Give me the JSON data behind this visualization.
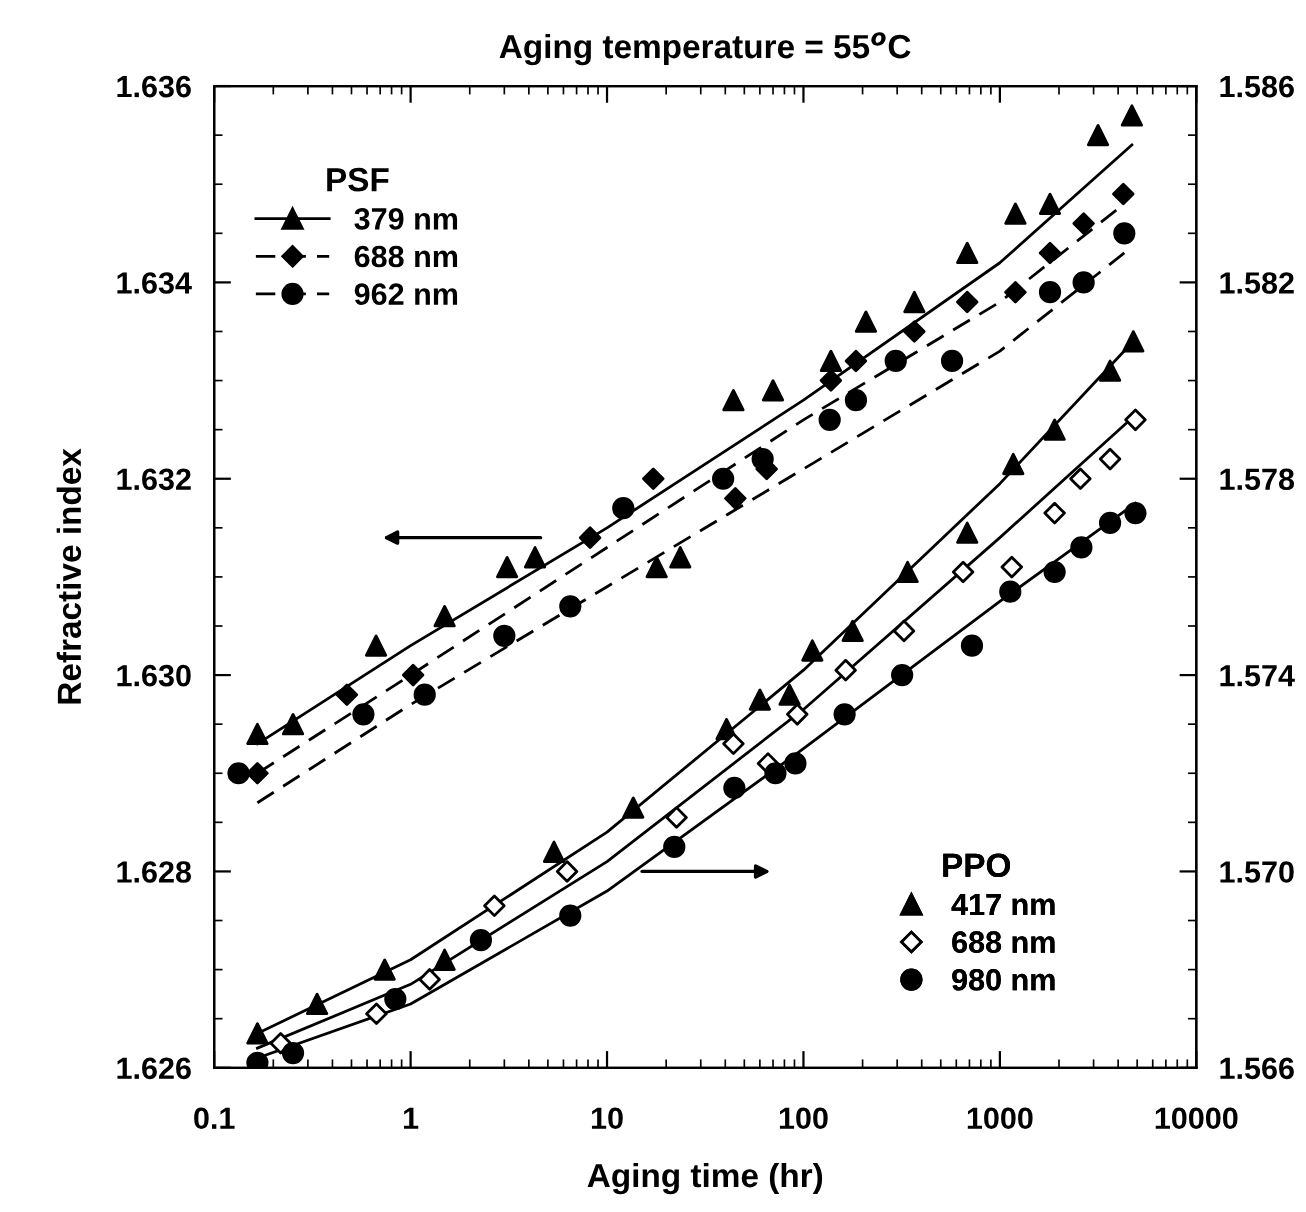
{
  "chart_data": {
    "type": "scatter",
    "title": "Aging temperature = 55$^{o}$C",
    "xlabel": "Aging time (hr)",
    "ylabel": "Refractive index",
    "legend_title": [
      "PSF",
      "PPO"
    ],
    "legend": [
      "top left",
      "bottom right"
    ],
    "log": "x",
    "xlim": [
      0.1,
      10000
    ],
    "xticks": [
      0.1,
      1,
      10,
      100,
      1000,
      10000
    ],
    "ylim": [
      1.626,
      1.636
    ],
    "yticks": [
      1.626,
      {
        "value": 1.628,
        "label": "1.628"
      },
      {
        "value": 1.63,
        "label": "1.630"
      },
      1.632,
      1.634,
      1.636
    ],
    "y2lim": [
      1.566,
      1.586
    ],
    "y2ticks": [
      1.566,
      {
        "value": 1.57,
        "label": "1.570"
      },
      1.574,
      1.578,
      1.582,
      1.586
    ],
    "series": [
      {
        "name": "379 nm",
        "color": "#000000",
        "marker": "triangle",
        "line_style": "solid",
        "axis": "y",
        "x": [
          0.166,
          0.252,
          0.667,
          1.49,
          3.1,
          4.3,
          17.9,
          23.6,
          44,
          70,
          138,
          208,
          367,
          682,
          1200,
          1800,
          3160,
          4700
        ],
        "values": [
          1.6294,
          1.6295,
          1.6303,
          1.6306,
          1.6311,
          1.6312,
          1.6311,
          1.6312,
          1.6328,
          1.6329,
          1.6332,
          1.6336,
          1.6338,
          1.6343,
          1.6347,
          1.6348,
          1.6355,
          1.6357
        ]
      },
      {
        "name": "688 nm",
        "color": "#000000",
        "marker": "diamond",
        "line_style": "dashed",
        "axis": "y",
        "x": [
          0.166,
          0.474,
          1.03,
          8.2,
          17.2,
          45,
          65,
          138,
          185,
          367,
          682,
          1200,
          1800,
          2670,
          4250
        ],
        "values": [
          1.629,
          1.6298,
          1.63,
          1.6314,
          1.632,
          1.6318,
          1.6321,
          1.633,
          1.6332,
          1.6335,
          1.6338,
          1.6339,
          1.6343,
          1.6346,
          1.6349
        ]
      },
      {
        "name": "962 nm",
        "color": "#000000",
        "marker": "circle",
        "line_style": "dashed",
        "axis": "y",
        "x": [
          0.133,
          0.575,
          1.18,
          3.0,
          6.5,
          12.1,
          39,
          62,
          136,
          185,
          295,
          571,
          1800,
          2670,
          4300
        ],
        "values": [
          1.629,
          1.6296,
          1.6298,
          1.6304,
          1.6307,
          1.6317,
          1.632,
          1.6322,
          1.6326,
          1.6328,
          1.6332,
          1.6332,
          1.6339,
          1.634,
          1.6345
        ]
      },
      {
        "name": "417 nm",
        "color": "#000000",
        "marker": "triangle",
        "axis": "y2",
        "x": [
          0.166,
          0.334,
          0.738,
          1.49,
          5.37,
          13.6,
          40.6,
          60,
          85,
          111,
          178,
          339,
          682,
          1170,
          1900,
          3640,
          4780
        ],
        "values": [
          1.5667,
          1.5673,
          1.568,
          1.5682,
          1.5704,
          1.5713,
          1.5729,
          1.5735,
          1.5736,
          1.5745,
          1.5749,
          1.5761,
          1.5769,
          1.5783,
          1.579,
          1.5802,
          1.5808
        ]
      },
      {
        "name": "688 nm",
        "color": "#000000",
        "marker": "diamond_open",
        "axis": "y2",
        "x": [
          0.218,
          0.67,
          1.25,
          2.67,
          6.26,
          22.6,
          44,
          66,
          93,
          164,
          325,
          650,
          1150,
          1900,
          2570,
          3640,
          4900
        ],
        "values": [
          1.5665,
          1.5671,
          1.5678,
          1.5693,
          1.57,
          1.5711,
          1.5726,
          1.5722,
          1.5732,
          1.5741,
          1.5749,
          1.5761,
          1.5762,
          1.5773,
          1.578,
          1.5784,
          1.5792
        ]
      },
      {
        "name": "980 nm",
        "color": "#000000",
        "marker": "circle",
        "axis": "y2",
        "x": [
          0.166,
          0.252,
          0.836,
          2.28,
          6.5,
          22,
          44.5,
          72,
          91,
          162,
          318,
          721,
          1130,
          1900,
          2600,
          3640,
          4900
        ],
        "values": [
          1.5661,
          1.5663,
          1.5674,
          1.5686,
          1.5691,
          1.5705,
          1.5717,
          1.572,
          1.5722,
          1.5732,
          1.574,
          1.5746,
          1.5757,
          1.5761,
          1.5766,
          1.5771,
          1.5773
        ]
      },
      {
        "type": "line",
        "color": "#000000",
        "line_style": "solid",
        "axis": "y",
        "x": [
          0.166,
          1,
          10,
          100,
          1000,
          4700
        ],
        "values": [
          1.6293,
          1.6303,
          1.6315,
          1.6328,
          1.6342,
          1.6354
        ]
      },
      {
        "type": "line",
        "color": "#000000",
        "line_style": "dashed",
        "axis": "y",
        "x": [
          0.166,
          1,
          10,
          100,
          1000,
          4300
        ],
        "values": [
          1.629,
          1.63,
          1.6313,
          1.6326,
          1.6338,
          1.6348
        ]
      },
      {
        "type": "line",
        "color": "#000000",
        "line_style": "dashed",
        "axis": "y",
        "x": [
          0.166,
          1,
          10,
          100,
          1000,
          4300
        ],
        "values": [
          1.6287,
          1.6297,
          1.6309,
          1.6321,
          1.6333,
          1.6343
        ]
      },
      {
        "type": "line",
        "color": "#000000",
        "line_style": "solid",
        "axis": "y2",
        "x": [
          0.166,
          1,
          10,
          100,
          1000,
          4780
        ],
        "values": [
          1.5667,
          1.5682,
          1.5708,
          1.5741,
          1.5779,
          1.5808
        ]
      },
      {
        "type": "line",
        "color": "#000000",
        "line_style": "solid",
        "axis": "y2",
        "x": [
          0.166,
          1,
          10,
          100,
          1000,
          4900
        ],
        "values": [
          1.5664,
          1.5677,
          1.5702,
          1.5733,
          1.5768,
          1.5793
        ]
      },
      {
        "type": "line",
        "color": "#000000",
        "line_style": "solid",
        "axis": "y2",
        "x": [
          0.166,
          1,
          10,
          100,
          1000,
          4900
        ],
        "values": [
          1.5662,
          1.5673,
          1.5696,
          1.5725,
          1.5755,
          1.5775
        ]
      }
    ]
  }
}
